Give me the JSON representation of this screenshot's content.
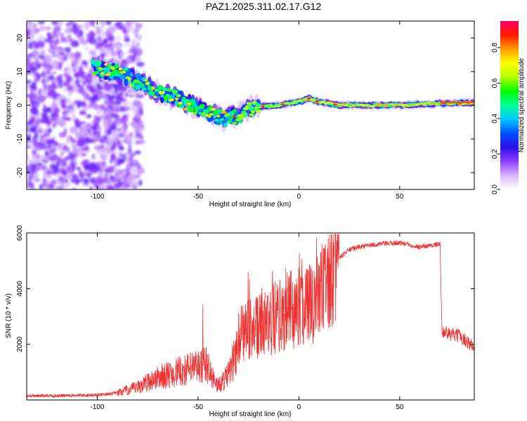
{
  "title": "PAZ1.2025.311.02.17.G12",
  "chart_data": [
    {
      "type": "heatmap",
      "xlabel": "Height of straight line (km)",
      "ylabel": "Frequency (Hz)",
      "xlim": [
        -135,
        87
      ],
      "ylim": [
        -25,
        25
      ],
      "xticks": [
        -100,
        -50,
        0,
        50
      ],
      "yticks": [
        -20,
        -10,
        0,
        10,
        20
      ],
      "colorbar": {
        "label": "Normalized spectral amplitude",
        "range": [
          0,
          0.95
        ],
        "ticks": [
          0,
          0.2,
          0.4,
          0.6,
          0.8
        ],
        "colors": [
          "#ffffff",
          "#d8b6ff",
          "#8e3cff",
          "#2a0fe8",
          "#0050ff",
          "#00c8ff",
          "#00ff9a",
          "#00ff00",
          "#b4ff00",
          "#ffff00",
          "#ff9c00",
          "#ff1a00",
          "#ff0064"
        ]
      },
      "ridge": {
        "x": [
          -100,
          -90,
          -80,
          -70,
          -60,
          -50,
          -42,
          -36,
          -30,
          -25,
          -20,
          -10,
          0,
          5,
          10,
          20,
          30,
          40,
          50,
          60,
          70,
          87
        ],
        "y": [
          11,
          10,
          7,
          4,
          2,
          -1,
          -3,
          -4,
          -3,
          -1,
          -0.5,
          0,
          1,
          2,
          1,
          0,
          0,
          0,
          0,
          0.3,
          0.5,
          0.8
        ]
      }
    },
    {
      "type": "line",
      "xlabel": "Height of straight line (km)",
      "ylabel": "SNR (10 * v/v)",
      "xlim": [
        -135,
        87
      ],
      "ylim": [
        0,
        6000
      ],
      "xticks": [
        -100,
        -50,
        0,
        50
      ],
      "yticks": [
        2000,
        4000,
        6000
      ],
      "series": [
        {
          "name": "SNR",
          "color": "#ee3333",
          "x": [
            -135,
            -120,
            -100,
            -90,
            -80,
            -75,
            -70,
            -65,
            -60,
            -55,
            -50,
            -46,
            -44,
            -42,
            -40,
            -35,
            -32,
            -30,
            -25,
            -20,
            -15,
            -10,
            -5,
            0,
            5,
            10,
            15,
            20,
            25,
            30,
            40,
            50,
            60,
            65,
            70,
            71,
            75,
            80,
            85,
            87
          ],
          "values": [
            150,
            150,
            180,
            250,
            450,
            650,
            800,
            900,
            1000,
            1100,
            1200,
            1250,
            1000,
            700,
            500,
            900,
            1500,
            2200,
            2500,
            2600,
            2800,
            3000,
            3200,
            3300,
            3500,
            3800,
            4200,
            5100,
            5400,
            5500,
            5600,
            5650,
            5500,
            5550,
            5600,
            2500,
            2350,
            2300,
            2000,
            1900
          ]
        }
      ]
    }
  ]
}
